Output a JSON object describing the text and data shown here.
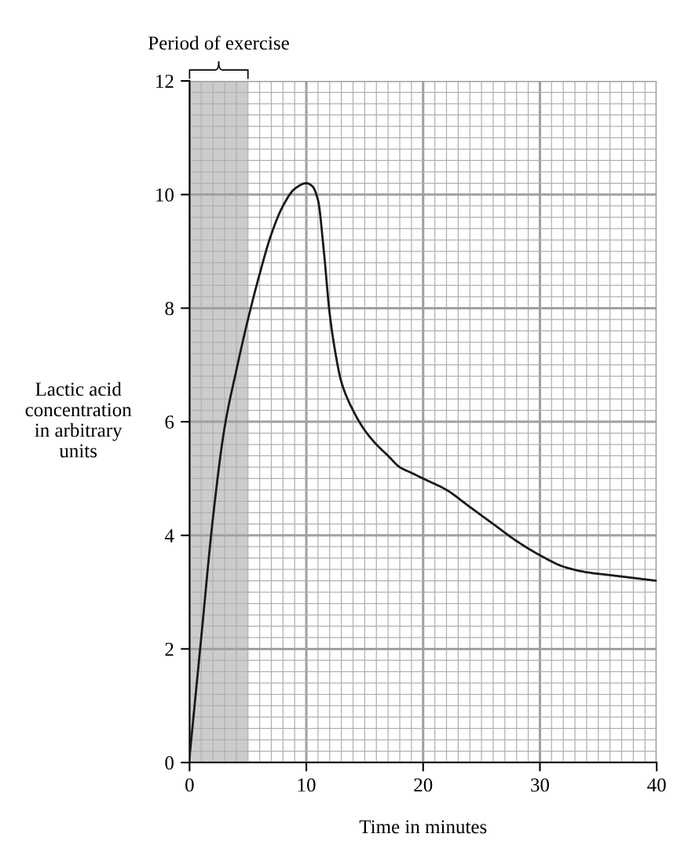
{
  "chart_data": {
    "type": "line",
    "xlabel": "Time in minutes",
    "ylabel": "Lactic acid\nconcentration\nin arbitrary\nunits",
    "x": [
      0,
      1,
      2,
      3,
      4,
      5,
      6,
      7,
      8,
      9,
      10,
      10.5,
      11,
      11.5,
      12,
      12.5,
      13,
      14,
      15,
      16,
      17,
      18,
      19,
      20,
      22,
      24,
      26,
      28,
      30,
      32,
      34,
      36,
      38,
      40
    ],
    "series": [
      {
        "color": "#1a1a1a",
        "values": [
          0.1,
          2.2,
          4.3,
          5.9,
          6.9,
          7.8,
          8.6,
          9.3,
          9.8,
          10.1,
          10.2,
          10.15,
          9.9,
          9.0,
          7.9,
          7.2,
          6.7,
          6.2,
          5.85,
          5.6,
          5.4,
          5.2,
          5.1,
          5.0,
          4.8,
          4.5,
          4.2,
          3.9,
          3.65,
          3.45,
          3.35,
          3.3,
          3.25,
          3.2
        ]
      }
    ],
    "xlim": [
      0,
      40
    ],
    "ylim": [
      0,
      12
    ],
    "xticks": [
      0,
      10,
      20,
      30,
      40
    ],
    "yticks": [
      0,
      2,
      4,
      6,
      8,
      10,
      12
    ],
    "bands": [
      {
        "axis": "x",
        "from": 0,
        "to": 5,
        "label": "Period of exercise",
        "color": "#cccccc"
      }
    ],
    "grid": true,
    "marker": "none",
    "line_style": "solid"
  }
}
